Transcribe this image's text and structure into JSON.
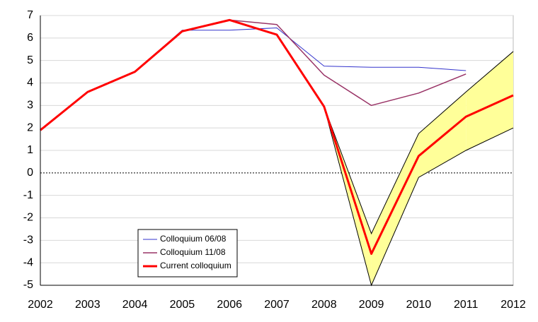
{
  "chart_data": {
    "type": "line",
    "categories": [
      "2002",
      "2003",
      "2004",
      "2005",
      "2006",
      "2007",
      "2008",
      "2009",
      "2010",
      "2011",
      "2012"
    ],
    "series": [
      {
        "name": "Colloquium 06/08",
        "color": "#3333cc",
        "width": 1,
        "values": [
          1.9,
          3.6,
          4.5,
          6.35,
          6.35,
          6.45,
          4.75,
          4.7,
          4.7,
          4.55,
          null
        ]
      },
      {
        "name": "Colloquium 11/08",
        "color": "#993366",
        "width": 1.5,
        "values": [
          1.9,
          3.6,
          4.5,
          6.3,
          6.8,
          6.6,
          4.35,
          3.0,
          3.55,
          4.4,
          null
        ]
      },
      {
        "name": "Current colloquium",
        "color": "#ff0000",
        "width": 3,
        "values": [
          1.9,
          3.6,
          4.5,
          6.3,
          6.8,
          6.15,
          2.95,
          -3.6,
          0.75,
          2.5,
          3.45
        ]
      }
    ],
    "band": {
      "color": "#ffff99",
      "upper": [
        null,
        null,
        null,
        null,
        null,
        null,
        2.95,
        -2.7,
        1.75,
        3.6,
        5.4
      ],
      "lower": [
        null,
        null,
        null,
        null,
        null,
        null,
        2.95,
        -5,
        -0.2,
        1.0,
        2.0
      ]
    },
    "ylim": [
      -5,
      7
    ],
    "yticks": [
      -5,
      -4,
      -3,
      -2,
      -1,
      0,
      1,
      2,
      3,
      4,
      5,
      6,
      7
    ],
    "grid": true
  }
}
